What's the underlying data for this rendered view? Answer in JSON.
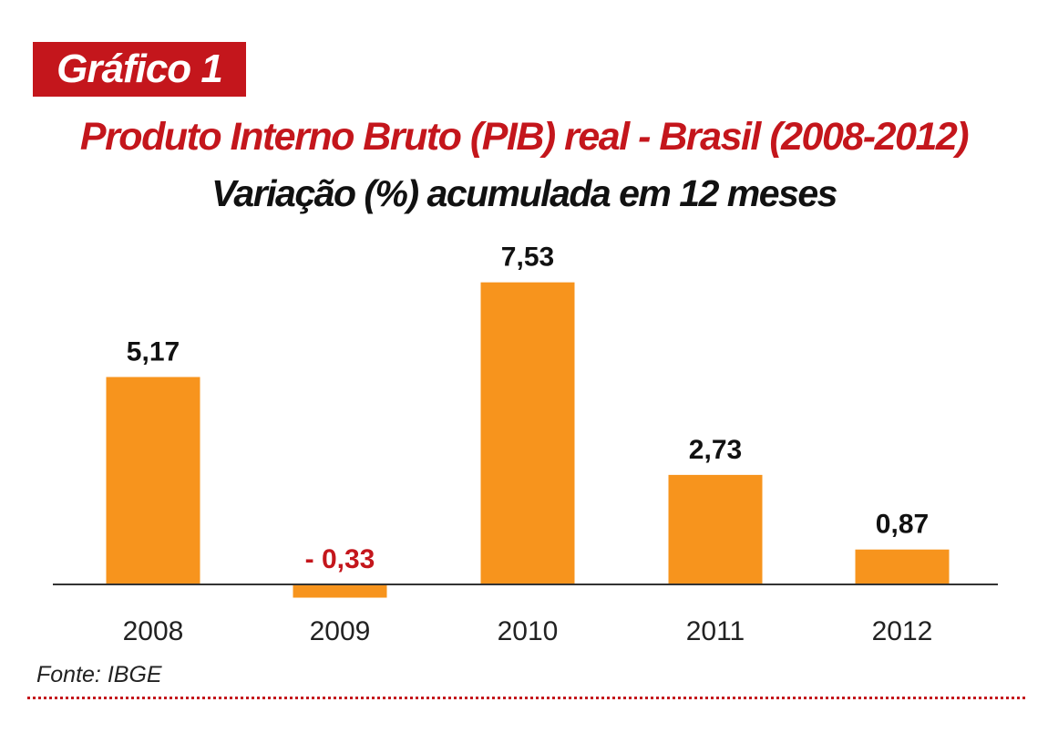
{
  "badge": "Gráfico 1",
  "source": "Fonte: IBGE",
  "colors": {
    "accent": "#c4161c",
    "bar": "#f7941d",
    "positive_label": "#111111",
    "negative_label": "#c4161c"
  },
  "chart_data": {
    "type": "bar",
    "title": "Produto Interno Bruto (PIB) real - Brasil (2008-2012)",
    "subtitle": "Variação (%) acumulada em 12 meses",
    "categories": [
      "2008",
      "2009",
      "2010",
      "2011",
      "2012"
    ],
    "values": [
      5.17,
      -0.33,
      7.53,
      2.73,
      0.87
    ],
    "value_labels": [
      "5,17",
      "- 0,33",
      "7,53",
      "2,73",
      "0,87"
    ],
    "xlabel": "",
    "ylabel": "",
    "grid": false,
    "legend": "none"
  }
}
